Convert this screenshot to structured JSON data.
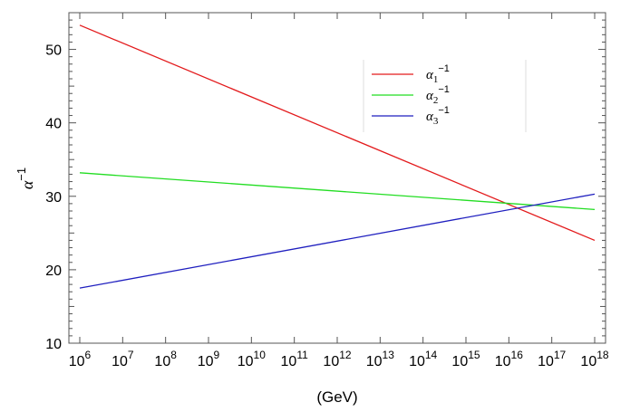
{
  "chart_data": {
    "type": "line",
    "xlabel": "(GeV)",
    "ylabel": "α",
    "ylabel_sup": "−1",
    "xscale": "log10",
    "xlim": [
      1000000.0,
      1e+18
    ],
    "ylim": [
      10,
      55
    ],
    "x_tick_base": "10",
    "x_tick_exponents": [
      "6",
      "7",
      "8",
      "9",
      "10",
      "11",
      "12",
      "13",
      "14",
      "15",
      "16",
      "17",
      "18"
    ],
    "x_tick_values": [
      1000000.0,
      10000000.0,
      100000000.0,
      1000000000.0,
      10000000000.0,
      100000000000.0,
      1000000000000.0,
      10000000000000.0,
      100000000000000.0,
      1000000000000000.0,
      1e+16,
      1e+17,
      1e+18
    ],
    "y_ticks": [
      10,
      20,
      30,
      40,
      50
    ],
    "y_tick_labels": [
      "10",
      "20",
      "30",
      "40",
      "50"
    ],
    "grid": false,
    "legend_position": "top-right",
    "series": [
      {
        "name": "α",
        "name_sub": "1",
        "name_sup": "−1",
        "color": "#e31a1c",
        "x": [
          1000000.0,
          1e+18
        ],
        "y": [
          53.3,
          24.0
        ]
      },
      {
        "name": "α",
        "name_sub": "2",
        "name_sup": "−1",
        "color": "#22dd22",
        "x": [
          1000000.0,
          1e+18
        ],
        "y": [
          33.2,
          28.2
        ]
      },
      {
        "name": "α",
        "name_sub": "3",
        "name_sup": "−1",
        "color": "#1f1fbf",
        "x": [
          1000000.0,
          1e+18
        ],
        "y": [
          17.5,
          30.3
        ]
      }
    ]
  }
}
